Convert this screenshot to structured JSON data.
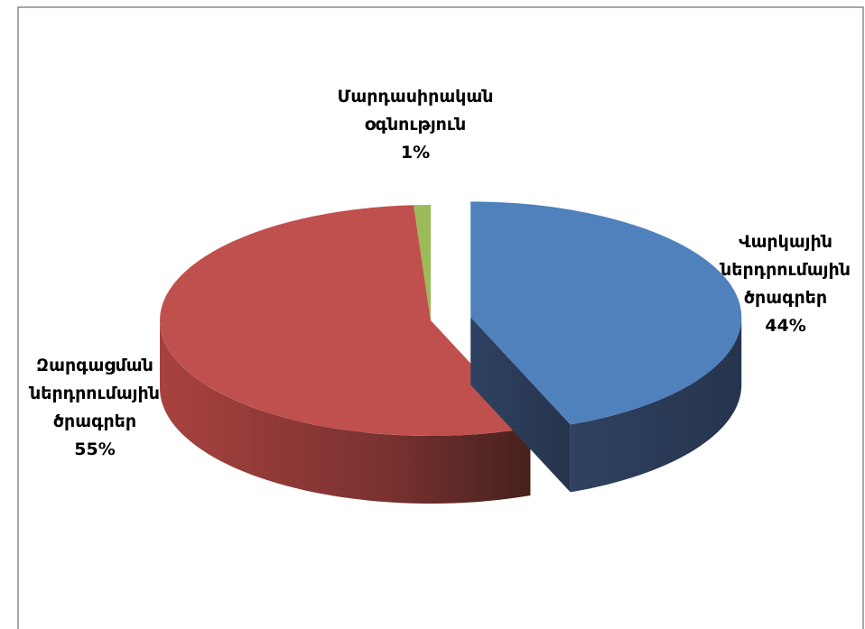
{
  "chart_data": {
    "type": "pie",
    "categories": [
      "Վարկային ներդրումային ծրագրեր",
      "Զարգացման ներդրումային ծրագրեր",
      "Մարդասիրական օգնություն"
    ],
    "values": [
      44,
      55,
      1
    ],
    "value_labels": [
      "44%",
      "55%",
      "1%"
    ],
    "colors": [
      "#4f81bd",
      "#c0504d",
      "#9bbb59"
    ],
    "explode": [
      true,
      false,
      false
    ]
  }
}
